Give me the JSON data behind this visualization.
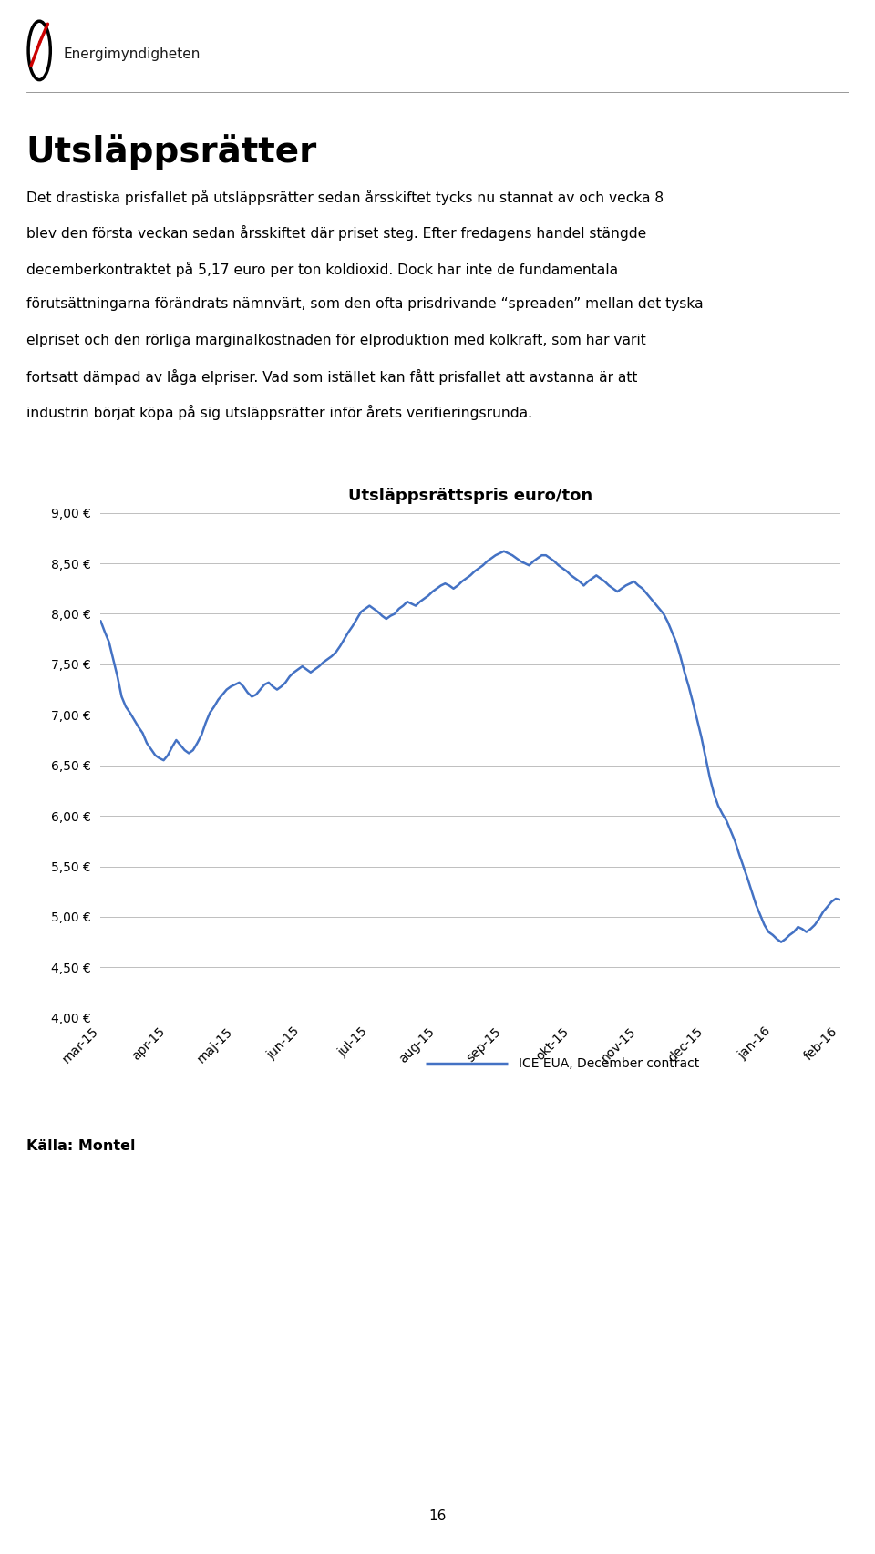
{
  "title": "Utsläppsrättspris euro/ton",
  "page_title": "Utsläppsrätter",
  "body_text": "Det drastiska prisfallet på utsläppsrätter sedan årsskiftet tycks nu stannat av och vecka 8 blev den första veckan sedan årsskiftet där priset steg. Efter fredagens handel stängde decemberkontraktet på 5,17 euro per ton koldioxid. Dock har inte de fundamentala förutsättningarna förändrats nämnvärt, som den ofta prisdrivande “spreaden” mellan det tyska elpriset och den rörliga marginalkostnaden för elproduktion med kolkraft, som har varit fortsatt dämpad av låga elpriser. Vad som istället kan fått prisfallet att avstanna är att industrin börjat köpa på sig utsläppsrätter inför årets verifieringsrunda.",
  "source_text": "Källa: Montel",
  "legend_label": "ICE EUA, December contract",
  "line_color": "#4472C4",
  "background_color": "#ffffff",
  "ytick_labels": [
    "4,00 €",
    "4,50 €",
    "5,00 €",
    "5,50 €",
    "6,00 €",
    "6,50 €",
    "7,00 €",
    "7,50 €",
    "8,00 €",
    "8,50 €",
    "9,00 €"
  ],
  "ytick_values": [
    4.0,
    4.5,
    5.0,
    5.5,
    6.0,
    6.5,
    7.0,
    7.5,
    8.0,
    8.5,
    9.0
  ],
  "xtick_labels": [
    "mar-15",
    "apr-15",
    "maj-15",
    "jun-15",
    "jul-15",
    "aug-15",
    "sep-15",
    "okt-15",
    "nov-15",
    "dec-15",
    "jan-16",
    "feb-16"
  ],
  "ylim": [
    4.0,
    9.0
  ],
  "series": [
    7.93,
    7.82,
    7.72,
    7.55,
    7.38,
    7.18,
    7.08,
    7.02,
    6.95,
    6.88,
    6.82,
    6.72,
    6.66,
    6.6,
    6.57,
    6.55,
    6.6,
    6.68,
    6.75,
    6.7,
    6.65,
    6.62,
    6.65,
    6.72,
    6.8,
    6.92,
    7.02,
    7.08,
    7.15,
    7.2,
    7.25,
    7.28,
    7.3,
    7.32,
    7.28,
    7.22,
    7.18,
    7.2,
    7.25,
    7.3,
    7.32,
    7.28,
    7.25,
    7.28,
    7.32,
    7.38,
    7.42,
    7.45,
    7.48,
    7.45,
    7.42,
    7.45,
    7.48,
    7.52,
    7.55,
    7.58,
    7.62,
    7.68,
    7.75,
    7.82,
    7.88,
    7.95,
    8.02,
    8.05,
    8.08,
    8.05,
    8.02,
    7.98,
    7.95,
    7.98,
    8.0,
    8.05,
    8.08,
    8.12,
    8.1,
    8.08,
    8.12,
    8.15,
    8.18,
    8.22,
    8.25,
    8.28,
    8.3,
    8.28,
    8.25,
    8.28,
    8.32,
    8.35,
    8.38,
    8.42,
    8.45,
    8.48,
    8.52,
    8.55,
    8.58,
    8.6,
    8.62,
    8.6,
    8.58,
    8.55,
    8.52,
    8.5,
    8.48,
    8.52,
    8.55,
    8.58,
    8.58,
    8.55,
    8.52,
    8.48,
    8.45,
    8.42,
    8.38,
    8.35,
    8.32,
    8.28,
    8.32,
    8.35,
    8.38,
    8.35,
    8.32,
    8.28,
    8.25,
    8.22,
    8.25,
    8.28,
    8.3,
    8.32,
    8.28,
    8.25,
    8.2,
    8.15,
    8.1,
    8.05,
    8.0,
    7.92,
    7.82,
    7.72,
    7.58,
    7.42,
    7.28,
    7.12,
    6.95,
    6.78,
    6.58,
    6.38,
    6.22,
    6.1,
    6.02,
    5.95,
    5.85,
    5.75,
    5.62,
    5.5,
    5.38,
    5.25,
    5.12,
    5.02,
    4.92,
    4.85,
    4.82,
    4.78,
    4.75,
    4.78,
    4.82,
    4.85,
    4.9,
    4.88,
    4.85,
    4.88,
    4.92,
    4.98,
    5.05,
    5.1,
    5.15,
    5.18,
    5.17
  ]
}
